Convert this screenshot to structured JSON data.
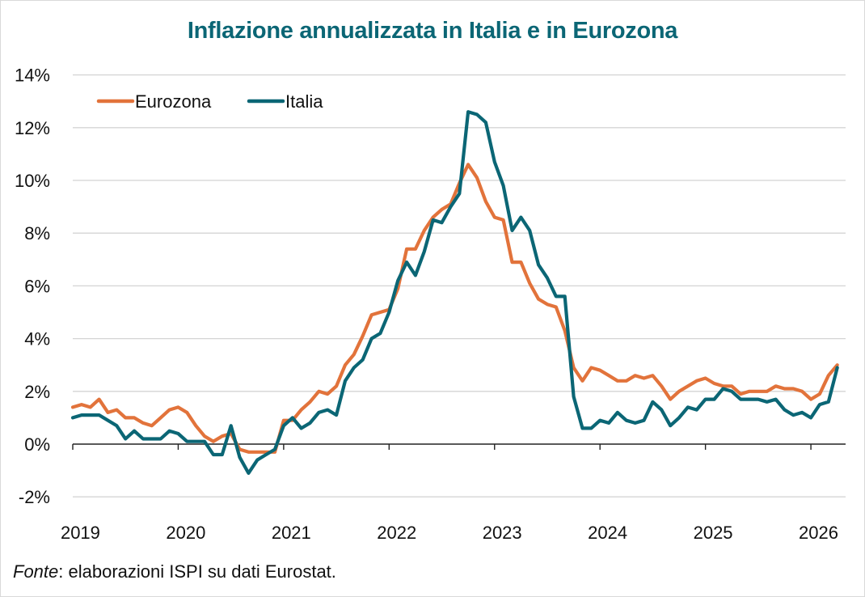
{
  "chart_data": {
    "type": "line",
    "title": "Inflazione annualizzata in Italia e in Eurozona",
    "source_label": "Fonte",
    "source_text": ": elaborazioni ISPI su dati Eurostat.",
    "x_start": "2019-01",
    "x_tick_labels": [
      "2019",
      "2020",
      "2021",
      "2022",
      "2023",
      "2024",
      "2025",
      "2026"
    ],
    "y_tick_labels": [
      "14%",
      "12%",
      "10%",
      "8%",
      "6%",
      "4%",
      "2%",
      "0%",
      "-2%"
    ],
    "ylim": [
      -2,
      14
    ],
    "grid": true,
    "legend_position": "top-left",
    "colors": {
      "Eurozona": "#e2733b",
      "Italia": "#0b6675"
    },
    "series": [
      {
        "name": "Eurozona",
        "values": [
          1.4,
          1.5,
          1.4,
          1.7,
          1.2,
          1.3,
          1.0,
          1.0,
          0.8,
          0.7,
          1.0,
          1.3,
          1.4,
          1.2,
          0.7,
          0.3,
          0.1,
          0.3,
          0.4,
          -0.2,
          -0.3,
          -0.3,
          -0.3,
          -0.3,
          0.9,
          0.9,
          1.3,
          1.6,
          2.0,
          1.9,
          2.2,
          3.0,
          3.4,
          4.1,
          4.9,
          5.0,
          5.1,
          5.9,
          7.4,
          7.4,
          8.1,
          8.6,
          8.9,
          9.1,
          9.9,
          10.6,
          10.1,
          9.2,
          8.6,
          8.5,
          6.9,
          6.9,
          6.1,
          5.5,
          5.3,
          5.2,
          4.3,
          2.9,
          2.4,
          2.9,
          2.8,
          2.6,
          2.4,
          2.4,
          2.6,
          2.5,
          2.6,
          2.2,
          1.7,
          2.0,
          2.2,
          2.4,
          2.5,
          2.3,
          2.2,
          2.2,
          1.9,
          2.0,
          2.0,
          2.0,
          2.2,
          2.1,
          2.1,
          2.0,
          1.7,
          1.9,
          2.6,
          3.0
        ]
      },
      {
        "name": "Italia",
        "values": [
          1.0,
          1.1,
          1.1,
          1.1,
          0.9,
          0.7,
          0.2,
          0.5,
          0.2,
          0.2,
          0.2,
          0.5,
          0.4,
          0.1,
          0.1,
          0.1,
          -0.4,
          -0.4,
          0.7,
          -0.5,
          -1.1,
          -0.6,
          -0.4,
          -0.2,
          0.7,
          1.0,
          0.6,
          0.8,
          1.2,
          1.3,
          1.1,
          2.4,
          2.9,
          3.2,
          4.0,
          4.2,
          5.0,
          6.2,
          6.9,
          6.4,
          7.3,
          8.5,
          8.4,
          9.0,
          9.5,
          12.6,
          12.5,
          12.2,
          10.7,
          9.8,
          8.1,
          8.6,
          8.1,
          6.8,
          6.3,
          5.6,
          5.6,
          1.8,
          0.6,
          0.6,
          0.9,
          0.8,
          1.2,
          0.9,
          0.8,
          0.9,
          1.6,
          1.3,
          0.7,
          1.0,
          1.4,
          1.3,
          1.7,
          1.7,
          2.1,
          2.0,
          1.7,
          1.7,
          1.7,
          1.6,
          1.7,
          1.3,
          1.1,
          1.2,
          1.0,
          1.5,
          1.6,
          2.9
        ]
      }
    ]
  }
}
